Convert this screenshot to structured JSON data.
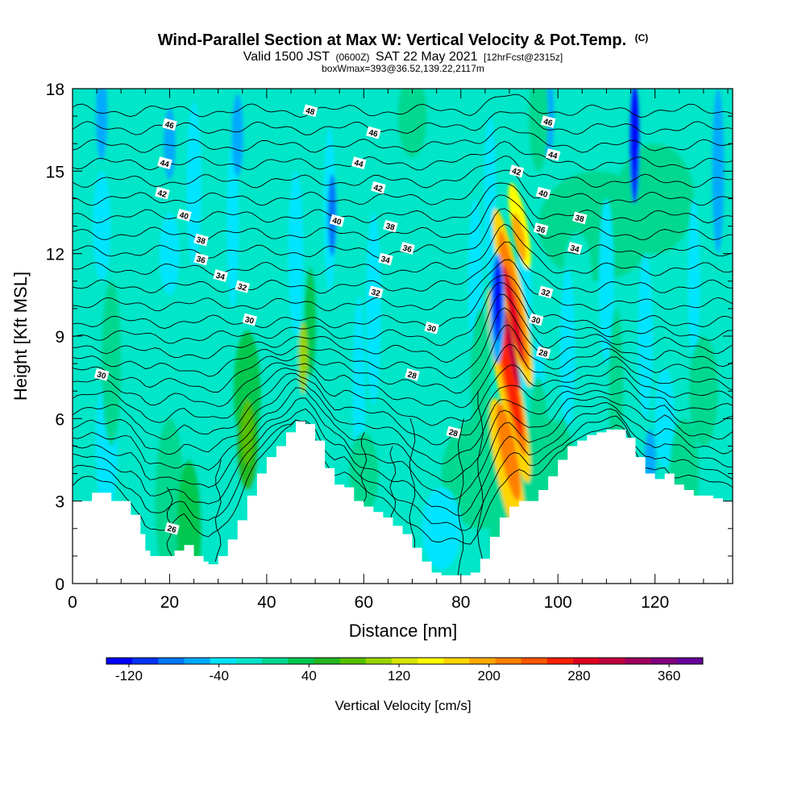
{
  "title": {
    "main": "Wind-Parallel Section at Max W: Vertical Velocity & Pot.Temp.",
    "copyright": "(C)",
    "valid_pre": "Valid 1500 JST",
    "valid_utc": "(0600Z)",
    "valid_post": "SAT 22 May 2021",
    "forecast": "[12hrFcst@2315z]",
    "boxinfo": "boxWmax=393@36.52,139.22,2117m"
  },
  "chart_data": {
    "type": "heatmap",
    "xlabel": "Distance [nm]",
    "ylabel": "Height [Kft MSL]",
    "xlim": [
      0,
      136
    ],
    "ylim": [
      0,
      18
    ],
    "x_ticks": [
      0,
      20,
      40,
      60,
      80,
      100,
      120
    ],
    "y_ticks": [
      0,
      3,
      6,
      9,
      12,
      15,
      18
    ],
    "colorbar": {
      "title": "Vertical Velocity [cm/s]",
      "min": -140,
      "max": 390,
      "step": 20,
      "tick_values": [
        -120,
        -40,
        40,
        120,
        200,
        280,
        360
      ],
      "colors": [
        "#0000ff",
        "#0033ff",
        "#0077ff",
        "#00aaff",
        "#00e5ff",
        "#00e6c8",
        "#00d890",
        "#00c850",
        "#22b822",
        "#55c000",
        "#99d400",
        "#d6e600",
        "#ffff00",
        "#ffd500",
        "#ffaa00",
        "#ff8000",
        "#ff5500",
        "#ff2000",
        "#e00020",
        "#c00040",
        "#a00060",
        "#800080",
        "#660099"
      ]
    },
    "terrain_profile": [
      [
        0,
        3
      ],
      [
        4,
        3.3
      ],
      [
        8,
        3
      ],
      [
        12,
        2.5
      ],
      [
        14,
        1.8
      ],
      [
        15,
        1.2
      ],
      [
        16,
        1
      ],
      [
        19,
        1
      ],
      [
        21,
        1.2
      ],
      [
        23,
        1.4
      ],
      [
        25,
        1
      ],
      [
        27,
        0.8
      ],
      [
        28,
        0.7
      ],
      [
        30,
        1
      ],
      [
        32,
        1.6
      ],
      [
        34,
        2.3
      ],
      [
        36,
        3.2
      ],
      [
        38,
        4
      ],
      [
        40,
        4.6
      ],
      [
        42,
        5
      ],
      [
        44,
        5.5
      ],
      [
        46,
        5.9
      ],
      [
        48,
        5.8
      ],
      [
        50,
        5.2
      ],
      [
        52,
        4.2
      ],
      [
        54,
        3.6
      ],
      [
        56,
        3.5
      ],
      [
        58,
        3
      ],
      [
        60,
        2.8
      ],
      [
        62,
        2.6
      ],
      [
        64,
        2.4
      ],
      [
        66,
        2.1
      ],
      [
        68,
        1.8
      ],
      [
        70,
        1.3
      ],
      [
        72,
        0.8
      ],
      [
        74,
        0.4
      ],
      [
        76,
        0.3
      ],
      [
        80,
        0.3
      ],
      [
        82,
        0.4
      ],
      [
        84,
        0.9
      ],
      [
        86,
        1.7
      ],
      [
        88,
        2.4
      ],
      [
        90,
        2.8
      ],
      [
        92,
        3
      ],
      [
        94,
        3
      ],
      [
        96,
        3.4
      ],
      [
        98,
        3.9
      ],
      [
        100,
        4.5
      ],
      [
        102,
        5
      ],
      [
        104,
        5.2
      ],
      [
        106,
        5.4
      ],
      [
        108,
        5.5
      ],
      [
        110,
        5.6
      ],
      [
        112,
        5.6
      ],
      [
        114,
        5.3
      ],
      [
        116,
        4.6
      ],
      [
        118,
        4
      ],
      [
        120,
        3.8
      ],
      [
        122,
        4
      ],
      [
        124,
        3.6
      ],
      [
        126,
        3.4
      ],
      [
        128,
        3.2
      ],
      [
        130,
        3.2
      ],
      [
        132,
        3.1
      ],
      [
        134,
        3.0
      ],
      [
        136,
        3.0
      ]
    ],
    "updraft_max": {
      "value": 393,
      "units": "cm/s"
    },
    "contours": {
      "variable": "Potential Temperature",
      "labels": [
        {
          "text": "46",
          "x": 20,
          "y": 16.7
        },
        {
          "text": "44",
          "x": 19,
          "y": 15.3
        },
        {
          "text": "42",
          "x": 18.5,
          "y": 14.2
        },
        {
          "text": "40",
          "x": 23,
          "y": 13.4
        },
        {
          "text": "38",
          "x": 26.5,
          "y": 12.5
        },
        {
          "text": "36",
          "x": 26.5,
          "y": 11.8
        },
        {
          "text": "34",
          "x": 30.5,
          "y": 11.2
        },
        {
          "text": "32",
          "x": 35,
          "y": 10.8
        },
        {
          "text": "30",
          "x": 36.5,
          "y": 9.6
        },
        {
          "text": "30",
          "x": 6,
          "y": 7.6
        },
        {
          "text": "48",
          "x": 49,
          "y": 17.2
        },
        {
          "text": "46",
          "x": 62,
          "y": 16.4
        },
        {
          "text": "44",
          "x": 59,
          "y": 15.3
        },
        {
          "text": "42",
          "x": 63,
          "y": 14.4
        },
        {
          "text": "40",
          "x": 54.5,
          "y": 13.2
        },
        {
          "text": "38",
          "x": 65.5,
          "y": 13.0
        },
        {
          "text": "36",
          "x": 69,
          "y": 12.2
        },
        {
          "text": "34",
          "x": 64.5,
          "y": 11.8
        },
        {
          "text": "32",
          "x": 62.5,
          "y": 10.6
        },
        {
          "text": "30",
          "x": 74,
          "y": 9.3
        },
        {
          "text": "28",
          "x": 70,
          "y": 7.6
        },
        {
          "text": "28",
          "x": 78.5,
          "y": 5.5
        },
        {
          "text": "26",
          "x": 20.5,
          "y": 2.0
        },
        {
          "text": "46",
          "x": 98,
          "y": 16.8
        },
        {
          "text": "44",
          "x": 99,
          "y": 15.6
        },
        {
          "text": "42",
          "x": 91.5,
          "y": 15.0
        },
        {
          "text": "40",
          "x": 97,
          "y": 14.2
        },
        {
          "text": "38",
          "x": 104.5,
          "y": 13.3
        },
        {
          "text": "36",
          "x": 96.5,
          "y": 12.9
        },
        {
          "text": "34",
          "x": 103.5,
          "y": 12.2
        },
        {
          "text": "32",
          "x": 97.5,
          "y": 10.6
        },
        {
          "text": "30",
          "x": 95.5,
          "y": 9.6
        },
        {
          "text": "28",
          "x": 97,
          "y": 8.4
        }
      ]
    }
  }
}
